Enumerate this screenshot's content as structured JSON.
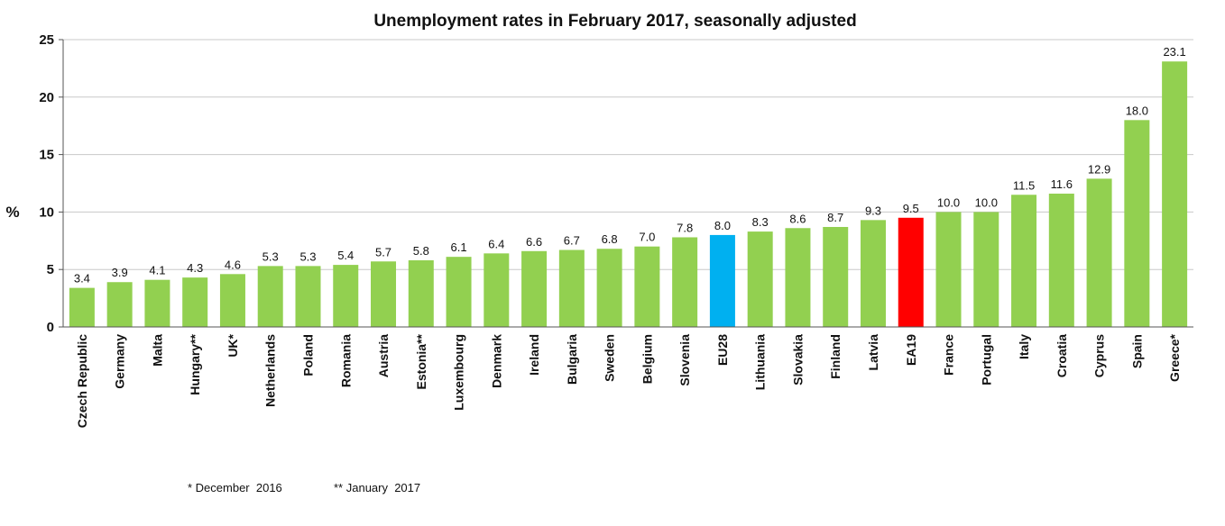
{
  "chart_data": {
    "type": "bar",
    "title": "Unemployment rates in February 2017, seasonally adjusted",
    "ylabel": "%",
    "xlabel": "",
    "ylim": [
      0,
      25
    ],
    "yticks": [
      0,
      5,
      10,
      15,
      20,
      25
    ],
    "grid": true,
    "categories": [
      "Czech Republic",
      "Germany",
      "Malta",
      "Hungary**",
      "UK*",
      "Netherlands",
      "Poland",
      "Romania",
      "Austria",
      "Estonia**",
      "Luxembourg",
      "Denmark",
      "Ireland",
      "Bulgaria",
      "Sweden",
      "Belgium",
      "Slovenia",
      "EU28",
      "Lithuania",
      "Slovakia",
      "Finland",
      "Latvia",
      "EA19",
      "France",
      "Portugal",
      "Italy",
      "Croatia",
      "Cyprus",
      "Spain",
      "Greece*"
    ],
    "values": [
      3.4,
      3.9,
      4.1,
      4.3,
      4.6,
      5.3,
      5.3,
      5.4,
      5.7,
      5.8,
      6.1,
      6.4,
      6.6,
      6.7,
      6.8,
      7.0,
      7.8,
      8.0,
      8.3,
      8.6,
      8.7,
      9.3,
      9.5,
      10.0,
      10.0,
      11.5,
      11.6,
      12.9,
      18.0,
      23.1
    ],
    "value_labels": [
      "3.4",
      "3.9",
      "4.1",
      "4.3",
      "4.6",
      "5.3",
      "5.3",
      "5.4",
      "5.7",
      "5.8",
      "6.1",
      "6.4",
      "6.6",
      "6.7",
      "6.8",
      "7.0",
      "7.8",
      "8.0",
      "8.3",
      "8.6",
      "8.7",
      "9.3",
      "9.5",
      "10.0",
      "10.0",
      "11.5",
      "11.6",
      "12.9",
      "18.0",
      "23.1"
    ],
    "colors": {
      "default": "#92d050",
      "highlight": {
        "EU28": "#00b0f0",
        "EA19": "#ff0000"
      },
      "grid": "#c8c8c8",
      "axis": "#555555"
    }
  },
  "footnotes": {
    "note1": "* December  2016",
    "note2": "** January  2017"
  }
}
